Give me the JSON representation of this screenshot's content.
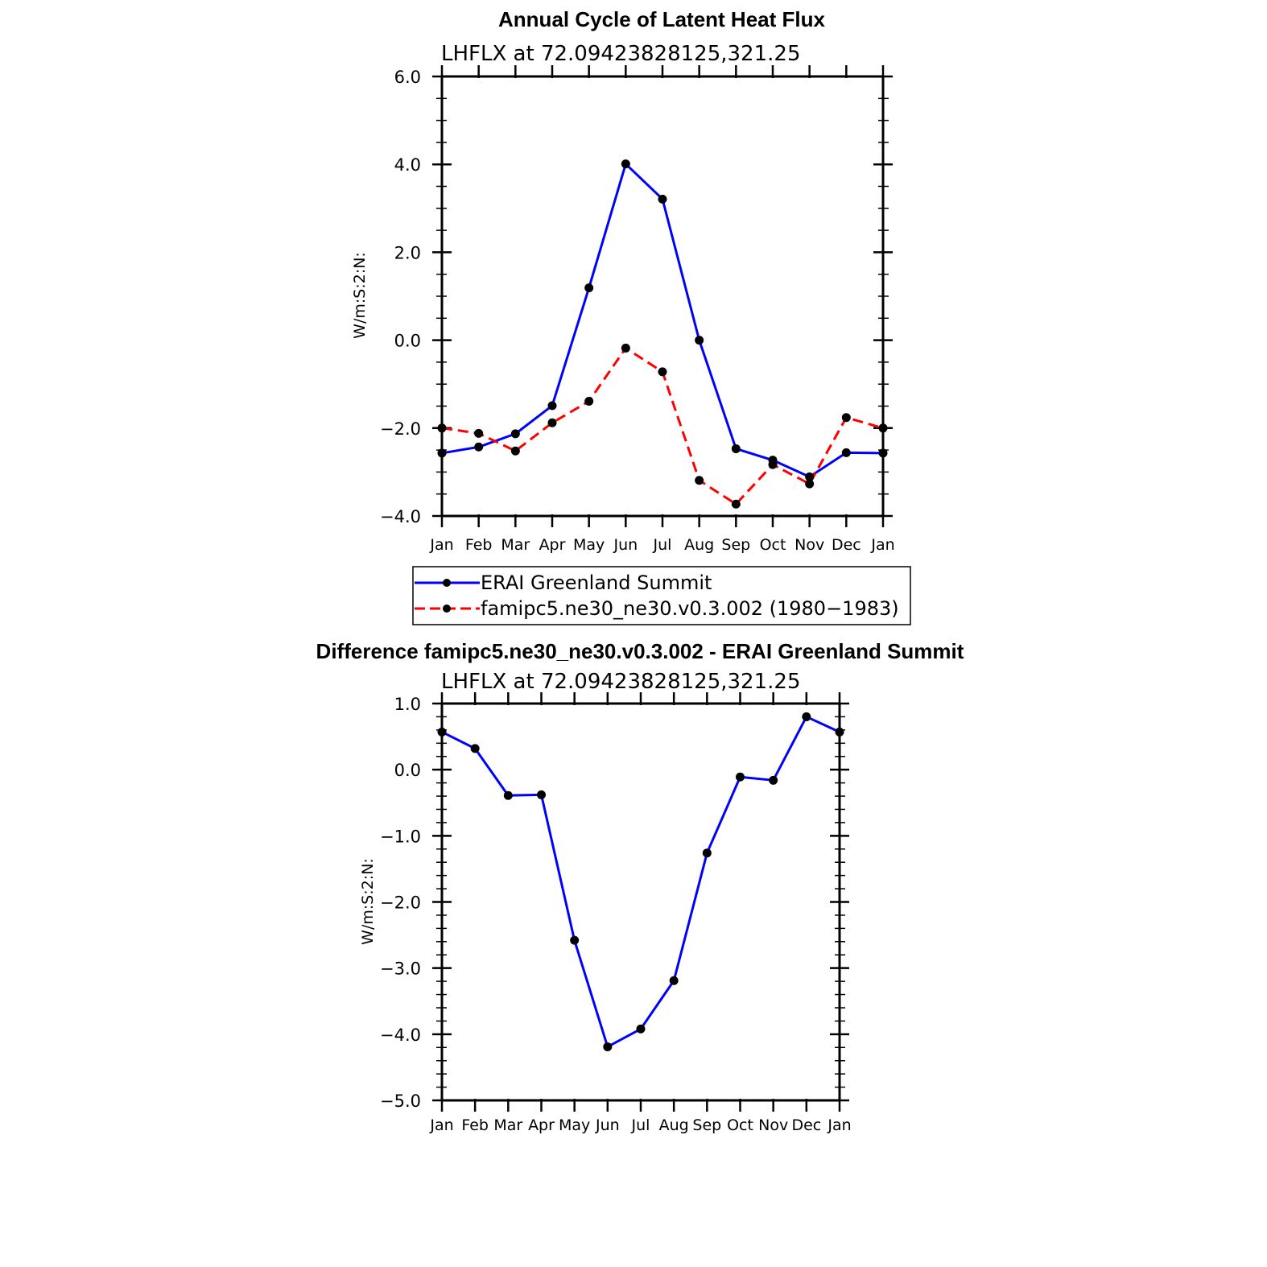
{
  "colors": {
    "erai": "#0000ff",
    "model": "#ff0000",
    "diff": "#0000ff",
    "marker": "#000000"
  },
  "chart_data": [
    {
      "type": "line",
      "title": "Annual Cycle of Latent Heat Flux",
      "subtitle": "LHFLX  at  72.09423828125,321.25",
      "xlabel": "",
      "ylabel": "W/m:S:2:N:",
      "categories": [
        "Jan",
        "Feb",
        "Mar",
        "Apr",
        "May",
        "Jun",
        "Jul",
        "Aug",
        "Sep",
        "Oct",
        "Nov",
        "Dec",
        "Jan"
      ],
      "ylim": [
        -4.0,
        6.0
      ],
      "yticks": [
        "6.0",
        "4.0",
        "2.0",
        "0.0",
        "−2.0",
        "−4.0"
      ],
      "ytick_values": [
        6.0,
        4.0,
        2.0,
        0.0,
        -2.0,
        -4.0
      ],
      "series": [
        {
          "name": "ERAI Greenland Summit",
          "style": "solid",
          "values": [
            -2.57,
            -2.43,
            -2.13,
            -1.49,
            1.19,
            4.01,
            3.21,
            0.0,
            -2.47,
            -2.73,
            -3.11,
            -2.56,
            -2.57
          ]
        },
        {
          "name": "famipc5.ne30_ne30.v0.3.002 (1980−1983)",
          "style": "dashed",
          "values": [
            -2.0,
            -2.12,
            -2.52,
            -1.88,
            -1.39,
            -0.18,
            -0.72,
            -3.19,
            -3.73,
            -2.83,
            -3.27,
            -1.76,
            -2.0
          ]
        }
      ],
      "legend": {
        "entries": [
          "ERAI Greenland Summit",
          "famipc5.ne30_ne30.v0.3.002 (1980−1983)"
        ],
        "placement": "below"
      }
    },
    {
      "type": "line",
      "title": "Difference famipc5.ne30_ne30.v0.3.002 - ERAI Greenland Summit",
      "subtitle": "LHFLX  at  72.09423828125,321.25",
      "xlabel": "",
      "ylabel": "W/m:S:2:N:",
      "categories": [
        "Jan",
        "Feb",
        "Mar",
        "Apr",
        "May",
        "Jun",
        "Jul",
        "Aug",
        "Sep",
        "Oct",
        "Nov",
        "Dec",
        "Jan"
      ],
      "ylim": [
        -5.0,
        1.0
      ],
      "yticks": [
        "1.0",
        "0.0",
        "−1.0",
        "−2.0",
        "−3.0",
        "−4.0",
        "−5.0"
      ],
      "ytick_values": [
        1.0,
        0.0,
        -1.0,
        -2.0,
        -3.0,
        -4.0,
        -5.0
      ],
      "series": [
        {
          "name": "Difference",
          "style": "solid",
          "values": [
            0.57,
            0.32,
            -0.39,
            -0.38,
            -2.58,
            -4.19,
            -3.92,
            -3.19,
            -1.26,
            -0.11,
            -0.16,
            0.8,
            0.57
          ]
        }
      ]
    }
  ]
}
